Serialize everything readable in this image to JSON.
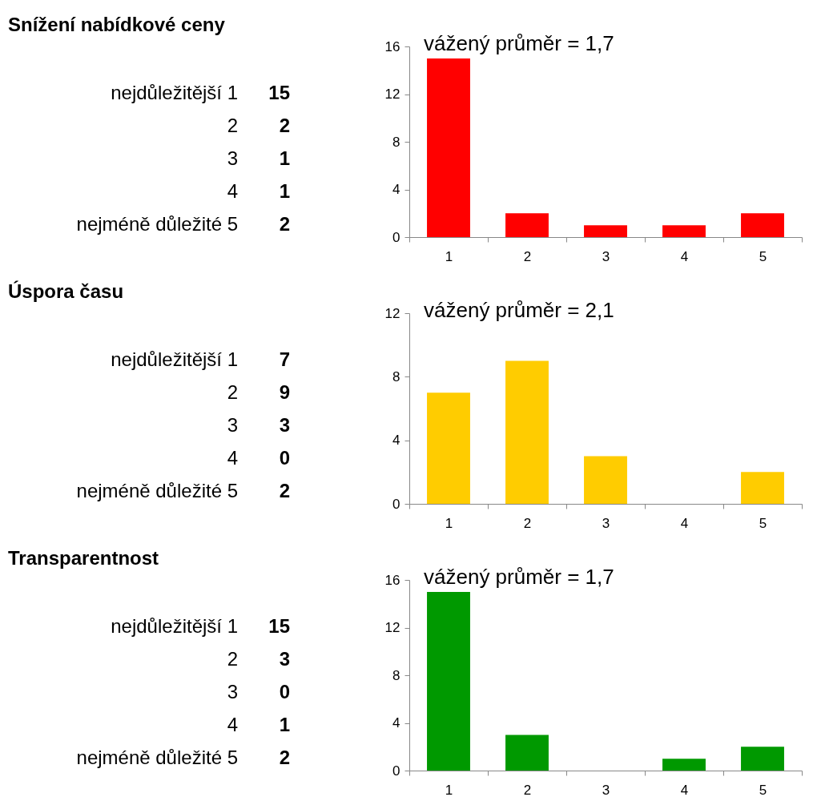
{
  "chart_data": [
    {
      "type": "other",
      "title": "Snížení nabídkové ceny",
      "annotations": [
        "nejdůležitější 1 15",
        "2 2",
        "3 1",
        "4 1",
        "nejméně důležité 5 2"
      ]
    },
    {
      "type": "bar",
      "categories": [
        "1",
        "2",
        "3",
        "4",
        "5"
      ],
      "values": [
        15,
        2,
        1,
        1,
        2
      ],
      "color": "#ff0000",
      "ylim": [
        0,
        16
      ],
      "yticks": [
        0,
        4,
        8,
        12,
        16
      ],
      "annotations": [
        "vážený průměr = 1,7"
      ]
    },
    {
      "type": "other",
      "title": "Úspora času",
      "annotations": [
        "nejdůležitější 1 7",
        "2 9",
        "3 3",
        "4 0",
        "nejméně důležité 5 2"
      ]
    },
    {
      "type": "bar",
      "categories": [
        "1",
        "2",
        "3",
        "4",
        "5"
      ],
      "values": [
        7,
        9,
        3,
        0,
        2
      ],
      "color": "#ffcc00",
      "ylim": [
        0,
        12
      ],
      "yticks": [
        0,
        4,
        8,
        12
      ],
      "annotations": [
        "vážený průměr = 2,1"
      ]
    },
    {
      "type": "other",
      "title": "Transparentnost",
      "annotations": [
        "nejdůležitější 1 15",
        "2 3",
        "3 0",
        "4 1",
        "nejméně důležité 5 2"
      ]
    },
    {
      "type": "bar",
      "categories": [
        "1",
        "2",
        "3",
        "4",
        "5"
      ],
      "values": [
        15,
        3,
        0,
        1,
        2
      ],
      "color": "#009900",
      "ylim": [
        0,
        16
      ],
      "yticks": [
        0,
        4,
        8,
        12,
        16
      ],
      "annotations": [
        "vážený průměr = 1,7"
      ]
    }
  ]
}
